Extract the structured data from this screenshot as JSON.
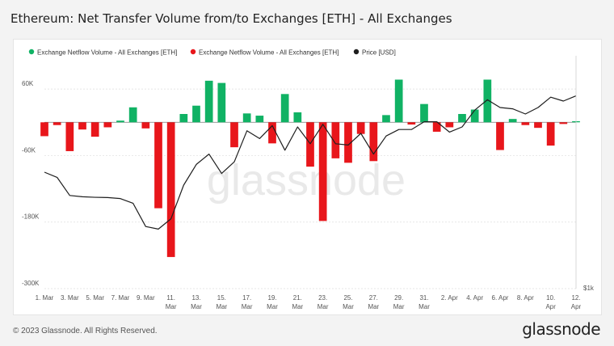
{
  "title": "Ethereum: Net Transfer Volume from/to Exchanges [ETH] - All Exchanges",
  "footer": "© 2023 Glassnode. All Rights Reserved.",
  "brand": "glassnode",
  "watermark": "glassnode",
  "colors": {
    "inflow": "#e8161b",
    "outflow": "#10b264",
    "price": "#1e1e1e",
    "grid": "#dddddd",
    "axis_text": "#555555"
  },
  "chart_data": {
    "type": "bar",
    "legend": {
      "placement": "top-left",
      "items": [
        {
          "label": "Exchange Netflow Volume - All Exchanges [ETH]",
          "color": "#10b264"
        },
        {
          "label": "Exchange Netflow Volume - All Exchanges [ETH]",
          "color": "#e8161b"
        },
        {
          "label": "Price [USD]",
          "color": "#1e1e1e"
        }
      ]
    },
    "x_ticks": [
      {
        "day": 0,
        "lines": [
          "1. Mar"
        ]
      },
      {
        "day": 2,
        "lines": [
          "3. Mar"
        ]
      },
      {
        "day": 4,
        "lines": [
          "5. Mar"
        ]
      },
      {
        "day": 6,
        "lines": [
          "7. Mar"
        ]
      },
      {
        "day": 8,
        "lines": [
          "9. Mar"
        ]
      },
      {
        "day": 10,
        "lines": [
          "11.",
          "Mar"
        ]
      },
      {
        "day": 12,
        "lines": [
          "13.",
          "Mar"
        ]
      },
      {
        "day": 14,
        "lines": [
          "15.",
          "Mar"
        ]
      },
      {
        "day": 16,
        "lines": [
          "17.",
          "Mar"
        ]
      },
      {
        "day": 18,
        "lines": [
          "19.",
          "Mar"
        ]
      },
      {
        "day": 20,
        "lines": [
          "21.",
          "Mar"
        ]
      },
      {
        "day": 22,
        "lines": [
          "23.",
          "Mar"
        ]
      },
      {
        "day": 24,
        "lines": [
          "25.",
          "Mar"
        ]
      },
      {
        "day": 26,
        "lines": [
          "27.",
          "Mar"
        ]
      },
      {
        "day": 28,
        "lines": [
          "29.",
          "Mar"
        ]
      },
      {
        "day": 30,
        "lines": [
          "31.",
          "Mar"
        ]
      },
      {
        "day": 32,
        "lines": [
          "2. Apr"
        ]
      },
      {
        "day": 34,
        "lines": [
          "4. Apr"
        ]
      },
      {
        "day": 36,
        "lines": [
          "6. Apr"
        ]
      },
      {
        "day": 38,
        "lines": [
          "8. Apr"
        ]
      },
      {
        "day": 40,
        "lines": [
          "10.",
          "Apr"
        ]
      },
      {
        "day": 42,
        "lines": [
          "12.",
          "Apr"
        ]
      }
    ],
    "y_left": {
      "ticks": [
        60000,
        -60000,
        -180000,
        -300000
      ],
      "labels": [
        "60K",
        "-60K",
        "-180K",
        "-300K"
      ],
      "ylim": [
        -300000,
        120000
      ]
    },
    "y_right": {
      "label": "$1k"
    },
    "netflow": [
      -25000,
      -5000,
      -52000,
      -13000,
      -26000,
      -9000,
      3000,
      27000,
      -11000,
      -155000,
      -243000,
      15000,
      30000,
      75000,
      71000,
      -45000,
      16000,
      12000,
      -38000,
      51000,
      18000,
      -80000,
      -178000,
      -65000,
      -73000,
      -21000,
      -70000,
      13000,
      77000,
      -4000,
      33000,
      -17000,
      -9000,
      15000,
      23000,
      77000,
      -50000,
      6000,
      -5000,
      -10000,
      -42000,
      -3000,
      2000
    ],
    "price": [
      1650,
      1630,
      1560,
      1555,
      1553,
      1552,
      1548,
      1530,
      1440,
      1430,
      1470,
      1600,
      1680,
      1720,
      1645,
      1690,
      1810,
      1780,
      1830,
      1735,
      1825,
      1760,
      1835,
      1760,
      1755,
      1800,
      1720,
      1790,
      1815,
      1815,
      1845,
      1845,
      1805,
      1825,
      1890,
      1930,
      1900,
      1895,
      1875,
      1900,
      1940,
      1925,
      1945
    ],
    "price_range": [
      1200,
      2100
    ]
  }
}
